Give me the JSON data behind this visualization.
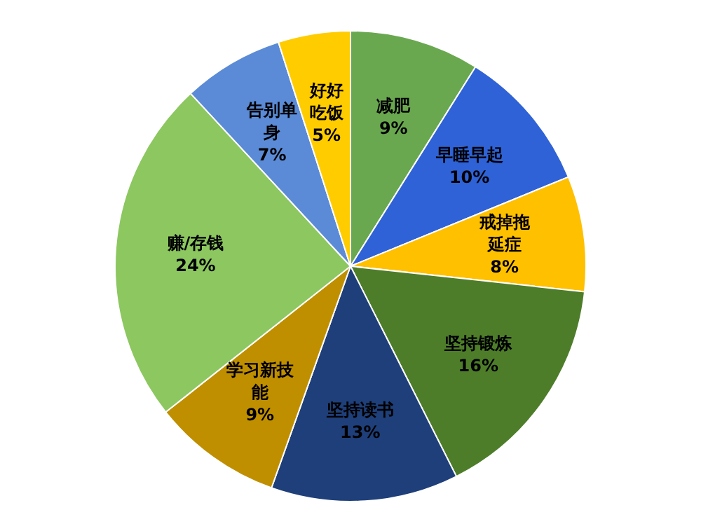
{
  "chart_data": {
    "type": "pie",
    "categories": [
      "减肥",
      "早睡早起",
      "戒掉拖延症",
      "坚持锻炼",
      "坚持读书",
      "学习新技能",
      "赚/存钱",
      "告别单身",
      "好好吃饭"
    ],
    "values": [
      9,
      10,
      8,
      16,
      13,
      9,
      24,
      7,
      5
    ],
    "value_labels": [
      "9%",
      "10%",
      "8%",
      "16%",
      "13%",
      "9%",
      "24%",
      "7%",
      "5%"
    ],
    "colors": [
      "#6aa84f",
      "#2f62d6",
      "#ffc000",
      "#4e7d2a",
      "#1f3f7a",
      "#bf8f00",
      "#8cc760",
      "#5b8bd6",
      "#ffcc00"
    ]
  }
}
